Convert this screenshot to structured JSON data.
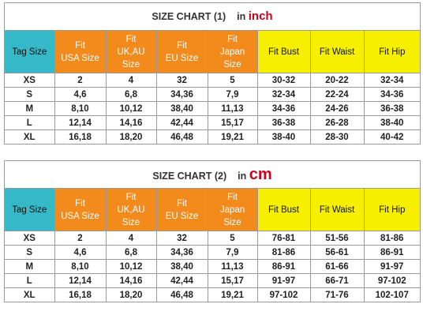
{
  "charts": [
    {
      "title": "SIZE CHART (1)",
      "unit_prefix": "in",
      "unit": "inch",
      "headers": [
        "Tag Size",
        "Fit\nUSA Size",
        "Fit\nUK,AU\nSize",
        "Fit\nEU Size",
        "Fit\nJapan\nSize",
        "Fit Bust",
        "Fit Waist",
        "Fit Hip"
      ],
      "rows": [
        [
          "XS",
          "2",
          "4",
          "32",
          "5",
          "30-32",
          "20-22",
          "32-34"
        ],
        [
          "S",
          "4,6",
          "6,8",
          "34,36",
          "7,9",
          "32-34",
          "22-24",
          "34-36"
        ],
        [
          "M",
          "8,10",
          "10,12",
          "38,40",
          "11,13",
          "34-36",
          "24-26",
          "36-38"
        ],
        [
          "L",
          "12,14",
          "14,16",
          "42,44",
          "15,17",
          "36-38",
          "26-28",
          "38-40"
        ],
        [
          "XL",
          "16,18",
          "18,20",
          "46,48",
          "19,21",
          "38-40",
          "28-30",
          "40-42"
        ]
      ]
    },
    {
      "title": "SIZE CHART (2)",
      "unit_prefix": "in",
      "unit": "cm",
      "headers": [
        "Tag Size",
        "Fit\nUSA Size",
        "Fit\nUK,AU\nSize",
        "Fit\nEU Size",
        "Fit\nJapan\nSize",
        "Fit Bust",
        "Fit Waist",
        "Fit Hip"
      ],
      "rows": [
        [
          "XS",
          "2",
          "4",
          "32",
          "5",
          "76-81",
          "51-56",
          "81-86"
        ],
        [
          "S",
          "4,6",
          "6,8",
          "34,36",
          "7,9",
          "81-86",
          "56-61",
          "86-91"
        ],
        [
          "M",
          "8,10",
          "10,12",
          "38,40",
          "11,13",
          "86-91",
          "61-66",
          "91-97"
        ],
        [
          "L",
          "12,14",
          "14,16",
          "42,44",
          "15,17",
          "91-97",
          "66-71",
          "97-102"
        ],
        [
          "XL",
          "16,18",
          "18,20",
          "46,48",
          "19,21",
          "97-102",
          "71-76",
          "102-107"
        ]
      ]
    }
  ],
  "colors": {
    "tag_header": "#35b8c7",
    "fit_header": "#f28a1c",
    "body_header": "#f6f000",
    "unit_text": "#d0021b"
  }
}
